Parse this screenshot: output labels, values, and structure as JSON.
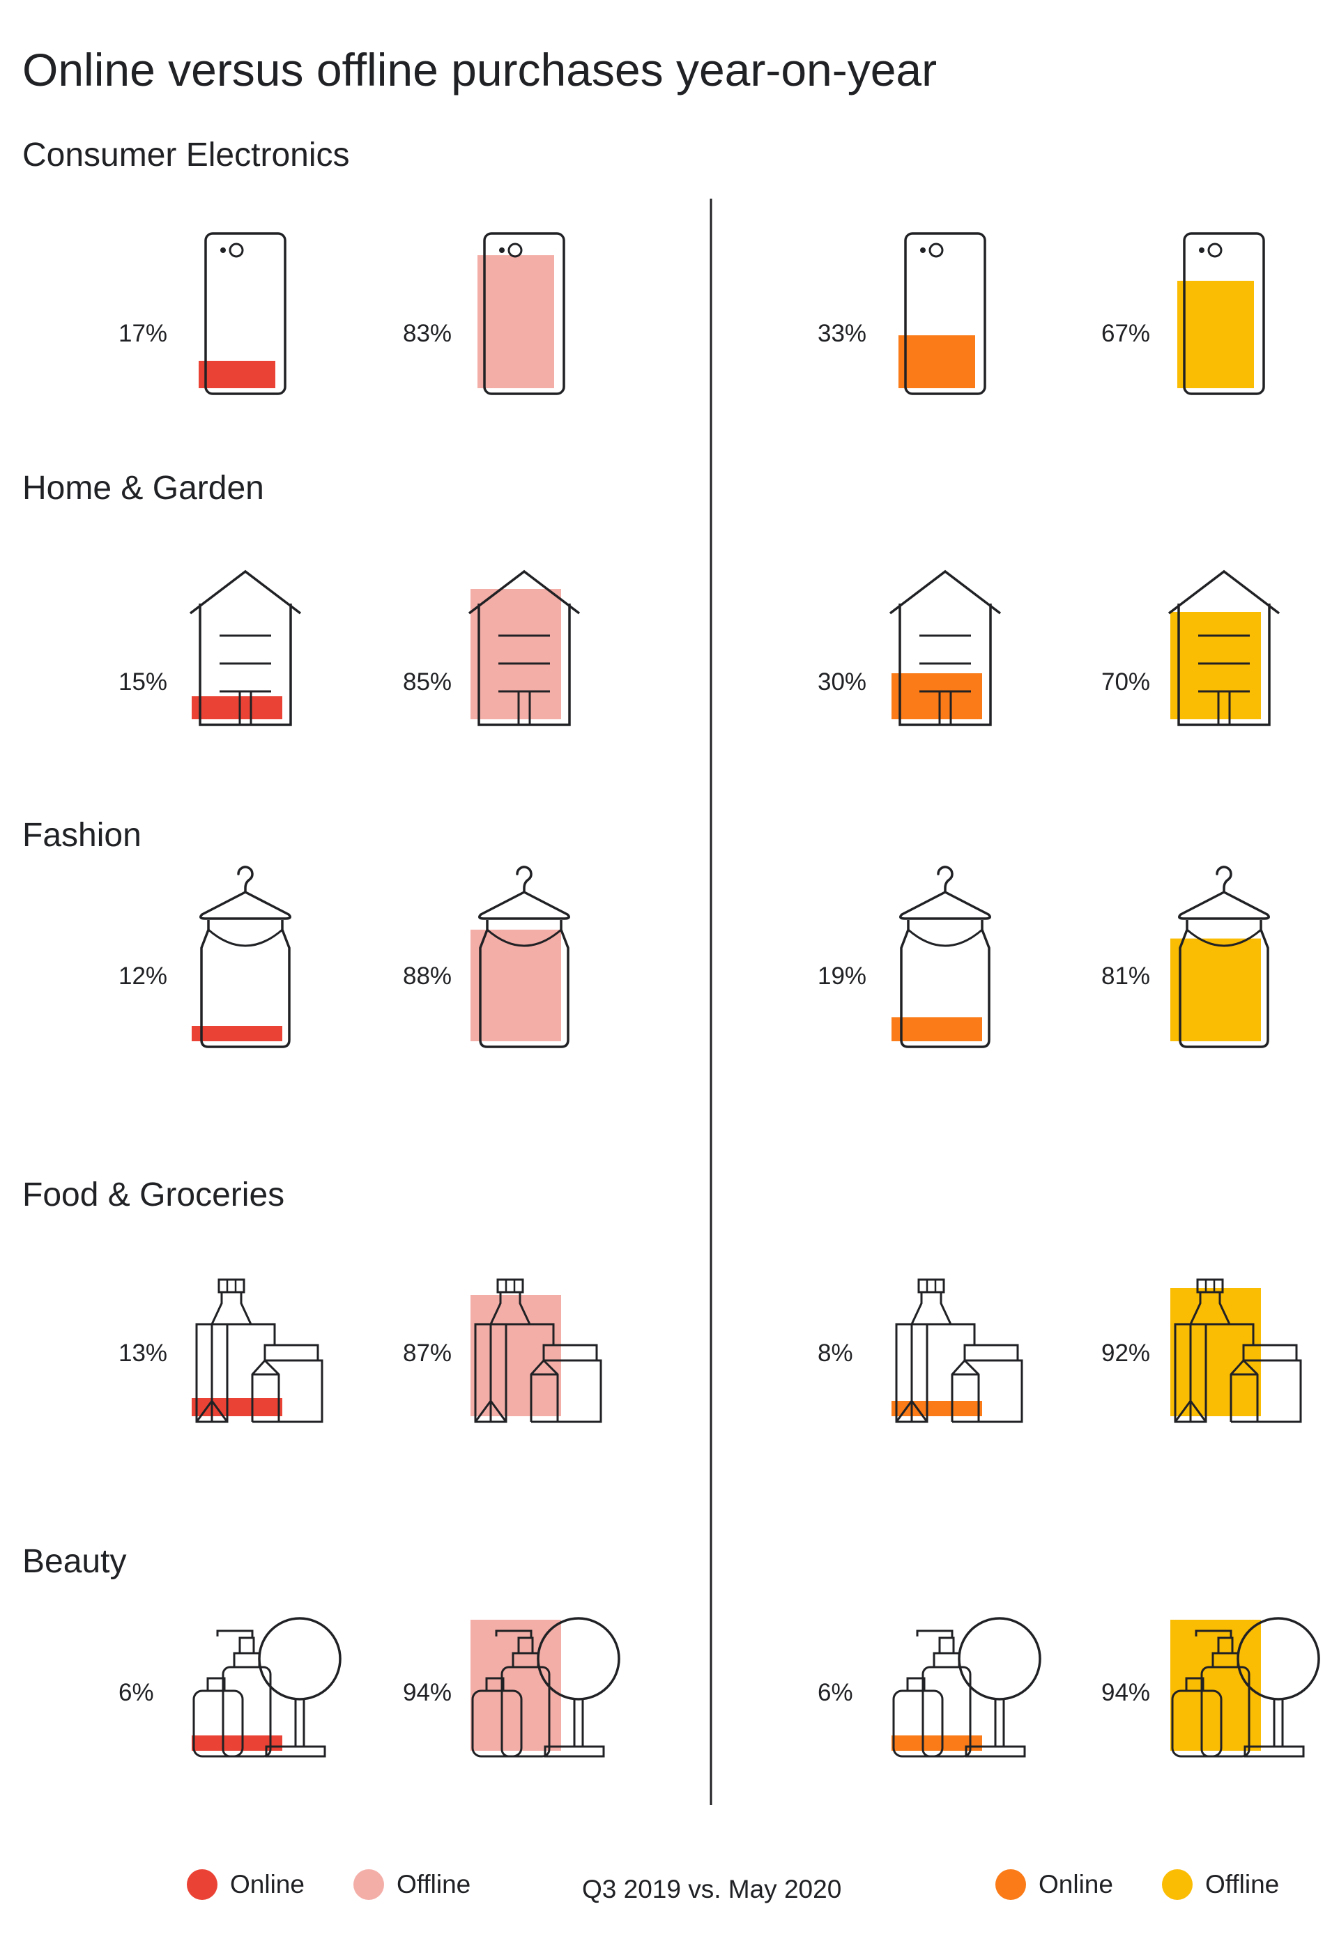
{
  "title": "Online versus offline purchases year-on-year",
  "chart_data": {
    "type": "icon-fill",
    "title": "Online versus offline purchases year-on-year",
    "periods": [
      {
        "name": "Q3 2019",
        "colors": {
          "Online": "#ea4335",
          "Offline": "#f4aea8"
        }
      },
      {
        "name": "May 2020",
        "colors": {
          "Online": "#fa7b17",
          "Offline": "#fbbc04"
        }
      }
    ],
    "categories": [
      {
        "name": "Consumer Electronics",
        "icon": "phone-icon",
        "values": {
          "Q3 2019": {
            "Online": 17,
            "Offline": 83
          },
          "May 2020": {
            "Online": 33,
            "Offline": 67
          }
        },
        "labels": {
          "Q3 2019": {
            "Online": "17%",
            "Offline": "83%"
          },
          "May 2020": {
            "Online": "33%",
            "Offline": "67%"
          }
        }
      },
      {
        "name": "Home & Garden",
        "icon": "house-icon",
        "values": {
          "Q3 2019": {
            "Online": 15,
            "Offline": 85
          },
          "May 2020": {
            "Online": 30,
            "Offline": 70
          }
        },
        "labels": {
          "Q3 2019": {
            "Online": "15%",
            "Offline": "85%"
          },
          "May 2020": {
            "Online": "30%",
            "Offline": "70%"
          }
        }
      },
      {
        "name": "Fashion",
        "icon": "hanger-dress-icon",
        "values": {
          "Q3 2019": {
            "Online": 12,
            "Offline": 88
          },
          "May 2020": {
            "Online": 19,
            "Offline": 81
          }
        },
        "labels": {
          "Q3 2019": {
            "Online": "12%",
            "Offline": "88%"
          },
          "May 2020": {
            "Online": "19%",
            "Offline": "81%"
          }
        }
      },
      {
        "name": "Food & Groceries",
        "icon": "groceries-icon",
        "values": {
          "Q3 2019": {
            "Online": 13,
            "Offline": 87
          },
          "May 2020": {
            "Online": 8,
            "Offline": 92
          }
        },
        "labels": {
          "Q3 2019": {
            "Online": "13%",
            "Offline": "87%"
          },
          "May 2020": {
            "Online": "8%",
            "Offline": "92%"
          }
        }
      },
      {
        "name": "Beauty",
        "icon": "beauty-products-icon",
        "values": {
          "Q3 2019": {
            "Online": 6,
            "Offline": 94
          },
          "May 2020": {
            "Online": 6,
            "Offline": 94
          }
        },
        "labels": {
          "Q3 2019": {
            "Online": "6%",
            "Offline": "94%"
          },
          "May 2020": {
            "Online": "6%",
            "Offline": "94%"
          }
        }
      }
    ]
  },
  "legend": {
    "left": [
      {
        "label": "Online",
        "color": "#ea4335"
      },
      {
        "label": "Offline",
        "color": "#f4aea8"
      }
    ],
    "right": [
      {
        "label": "Online",
        "color": "#fa7b17"
      },
      {
        "label": "Offline",
        "color": "#fbbc04"
      }
    ],
    "caption": "Q3 2019 vs. May 2020"
  }
}
